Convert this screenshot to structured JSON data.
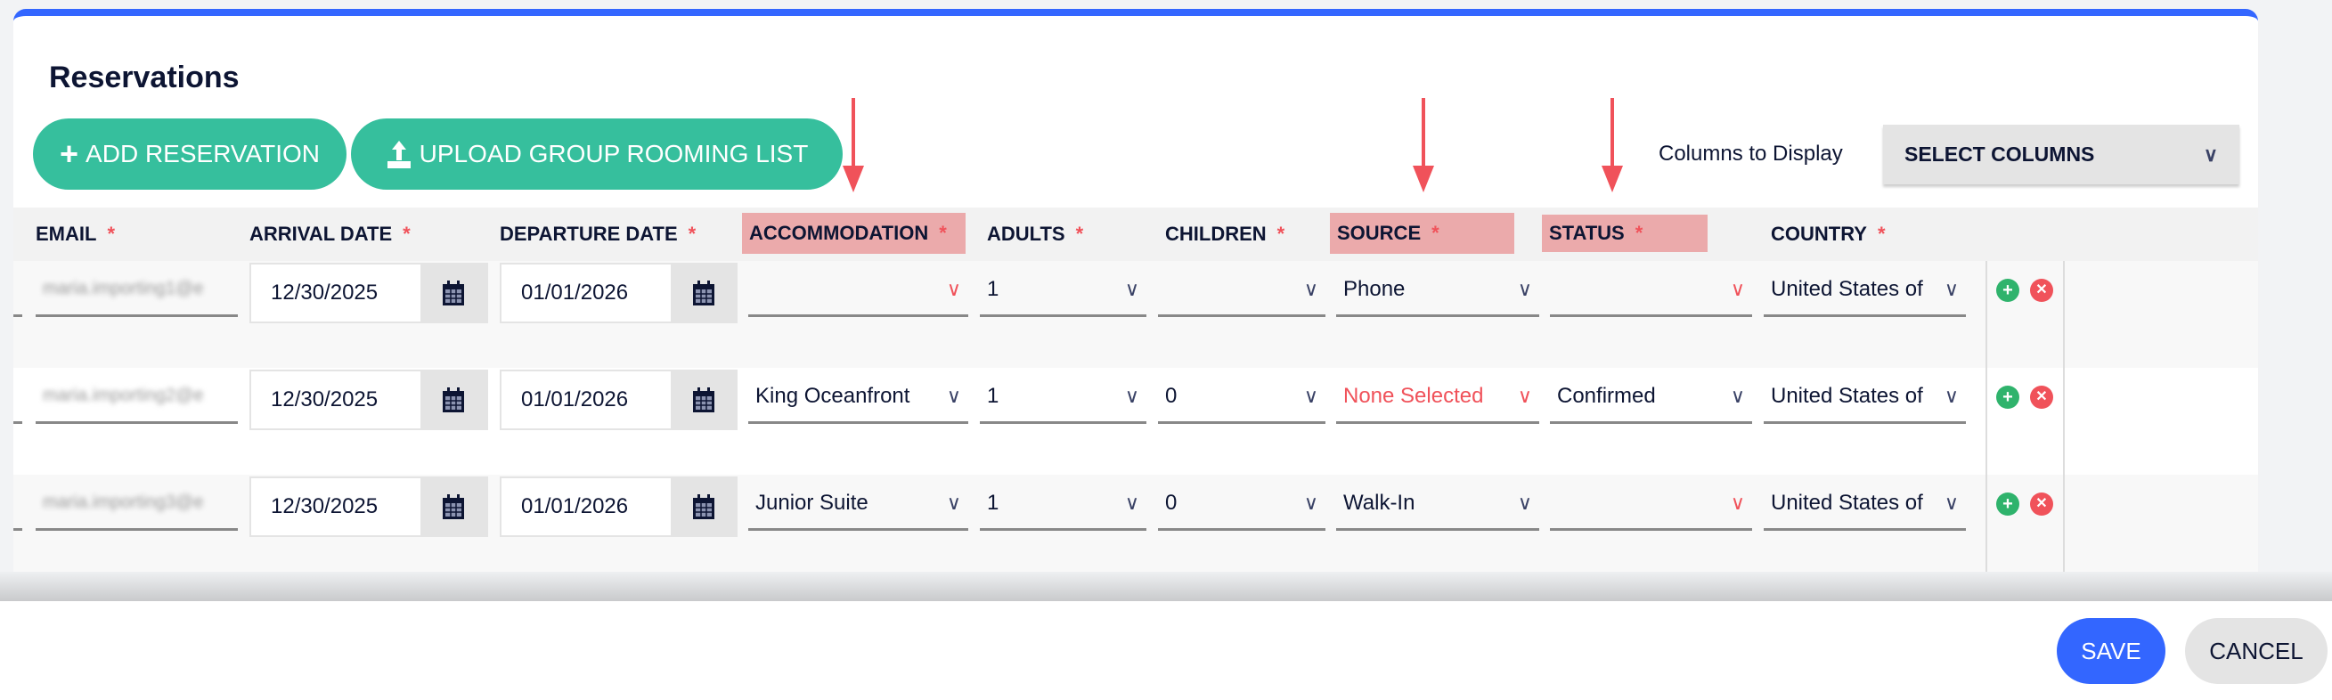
{
  "title": "Reservations",
  "buttons": {
    "add": "ADD RESERVATION",
    "upload": "UPLOAD GROUP ROOMING LIST",
    "save": "SAVE",
    "cancel": "CANCEL"
  },
  "columns_to_display": {
    "label": "Columns to Display",
    "value": "SELECT COLUMNS"
  },
  "colors": {
    "accent": "#3366ff",
    "green": "#36bf9d",
    "highlight": "#ebaaab",
    "required": "#f0525a"
  },
  "columns": [
    {
      "label": "EMAIL",
      "required": "*",
      "highlighted": false
    },
    {
      "label": "ARRIVAL DATE",
      "required": "*",
      "highlighted": false
    },
    {
      "label": "DEPARTURE DATE",
      "required": "*",
      "highlighted": false
    },
    {
      "label": "ACCOMMODATION",
      "required": "*",
      "highlighted": true
    },
    {
      "label": "ADULTS",
      "required": "*",
      "highlighted": false
    },
    {
      "label": "CHILDREN",
      "required": "*",
      "highlighted": false
    },
    {
      "label": "SOURCE",
      "required": "*",
      "highlighted": true
    },
    {
      "label": "STATUS",
      "required": "*",
      "highlighted": true
    },
    {
      "label": "COUNTRY",
      "required": "*",
      "highlighted": false
    }
  ],
  "rows": [
    {
      "email": "maria.importing1@e",
      "arrival": "12/30/2025",
      "departure": "01/01/2026",
      "accommodation": "",
      "adults": "1",
      "children": "",
      "source": "Phone",
      "status": "",
      "country": "United States of"
    },
    {
      "email": "maria.importing2@e",
      "arrival": "12/30/2025",
      "departure": "01/01/2026",
      "accommodation": "King Oceanfront",
      "adults": "1",
      "children": "0",
      "source": "None Selected",
      "status": "Confirmed",
      "country": "United States of"
    },
    {
      "email": "maria.importing3@e",
      "arrival": "12/30/2025",
      "departure": "01/01/2026",
      "accommodation": "Junior Suite",
      "adults": "1",
      "children": "0",
      "source": "Walk-In",
      "status": "",
      "country": "United States of"
    }
  ]
}
